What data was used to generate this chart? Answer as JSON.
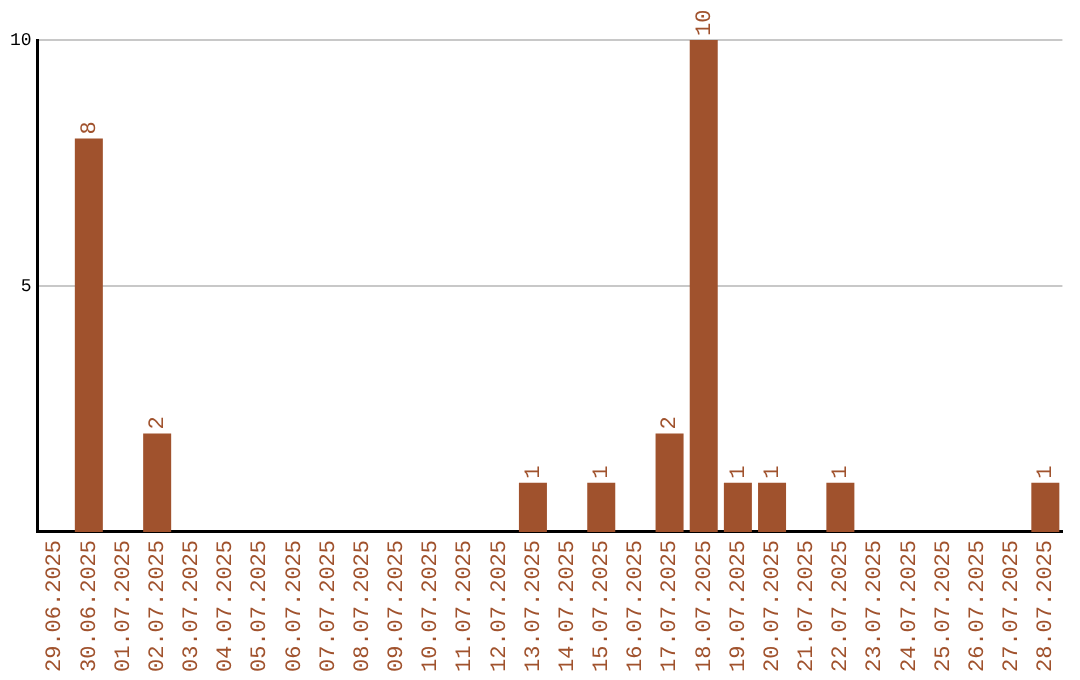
{
  "chart_data": {
    "type": "bar",
    "categories": [
      "29.06.2025",
      "30.06.2025",
      "01.07.2025",
      "02.07.2025",
      "03.07.2025",
      "04.07.2025",
      "05.07.2025",
      "06.07.2025",
      "07.07.2025",
      "08.07.2025",
      "09.07.2025",
      "10.07.2025",
      "11.07.2025",
      "12.07.2025",
      "13.07.2025",
      "14.07.2025",
      "15.07.2025",
      "16.07.2025",
      "17.07.2025",
      "18.07.2025",
      "19.07.2025",
      "20.07.2025",
      "21.07.2025",
      "22.07.2025",
      "23.07.2025",
      "24.07.2025",
      "25.07.2025",
      "26.07.2025",
      "27.07.2025",
      "28.07.2025"
    ],
    "values": [
      0,
      8,
      0,
      2,
      0,
      0,
      0,
      0,
      0,
      0,
      0,
      0,
      0,
      0,
      1,
      0,
      1,
      0,
      2,
      10,
      1,
      1,
      0,
      1,
      0,
      0,
      0,
      0,
      0,
      1
    ],
    "value_labels": [
      null,
      "8",
      null,
      "2",
      null,
      null,
      null,
      null,
      null,
      null,
      null,
      null,
      null,
      null,
      "1",
      null,
      "1",
      null,
      "2",
      "10",
      "1",
      "1",
      null,
      "1",
      null,
      null,
      null,
      null,
      null,
      "1"
    ],
    "color": "#a0522d",
    "ylim": [
      0,
      10
    ],
    "yticks": [
      5,
      10
    ],
    "grid": "y",
    "legend": false
  }
}
